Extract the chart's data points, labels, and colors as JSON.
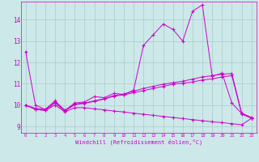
{
  "xlabel": "Windchill (Refroidissement éolien,°C)",
  "ylabel": "",
  "bg_color": "#cce8e8",
  "line_color": "#cc00cc",
  "grid_color": "#aacccc",
  "x_ticks": [
    0,
    1,
    2,
    3,
    4,
    5,
    6,
    7,
    8,
    9,
    10,
    11,
    12,
    13,
    14,
    15,
    16,
    17,
    18,
    19,
    20,
    21,
    22,
    23
  ],
  "y_ticks": [
    9,
    10,
    11,
    12,
    13,
    14
  ],
  "xlim": [
    -0.5,
    23.5
  ],
  "ylim": [
    8.7,
    14.85
  ],
  "series": {
    "line1": [
      12.5,
      10.0,
      9.8,
      10.2,
      9.75,
      10.1,
      10.15,
      10.4,
      10.35,
      10.55,
      10.5,
      10.7,
      12.8,
      13.3,
      13.8,
      13.55,
      13.0,
      14.4,
      14.7,
      11.35,
      11.5,
      10.1,
      9.6,
      9.4
    ],
    "line2": [
      10.0,
      9.85,
      9.8,
      10.15,
      9.75,
      10.05,
      10.1,
      10.2,
      10.3,
      10.45,
      10.52,
      10.65,
      10.78,
      10.88,
      10.98,
      11.05,
      11.12,
      11.22,
      11.32,
      11.38,
      11.45,
      11.48,
      9.62,
      9.42
    ],
    "line3": [
      10.0,
      9.8,
      9.75,
      10.1,
      9.72,
      10.02,
      10.08,
      10.18,
      10.28,
      10.42,
      10.48,
      10.58,
      10.68,
      10.78,
      10.88,
      10.98,
      11.03,
      11.08,
      11.18,
      11.23,
      11.32,
      11.38,
      9.58,
      9.38
    ],
    "line4": [
      10.0,
      9.8,
      9.75,
      10.0,
      9.68,
      9.88,
      9.88,
      9.82,
      9.78,
      9.72,
      9.68,
      9.62,
      9.57,
      9.52,
      9.47,
      9.42,
      9.37,
      9.32,
      9.27,
      9.22,
      9.18,
      9.13,
      9.08,
      9.38
    ]
  }
}
